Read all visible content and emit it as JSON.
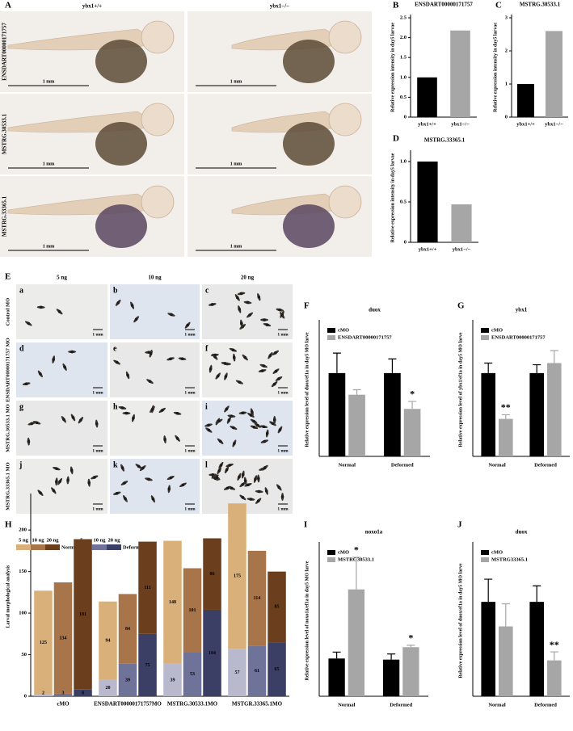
{
  "figures": [
    {
      "panel": "A",
      "columns": [
        "ybx1+/+",
        "ybx1−/−"
      ],
      "rows": [
        "ENSDART00000171757",
        "MSTRG.30533.1",
        "MSTRG.33365.1"
      ],
      "scale_bar": "1 mm"
    },
    {
      "panel": "E",
      "columns": [
        "5 ng",
        "10 ng",
        "20 ng"
      ],
      "rows": [
        "Control MO",
        "ENSDART00000171757 MO",
        "MSTRG.30533.1 MO",
        "MSTRG.33365.1 MO"
      ],
      "letters": [
        "a",
        "b",
        "c",
        "d",
        "e",
        "f",
        "g",
        "h",
        "i",
        "j",
        "k",
        "l"
      ],
      "scale_bar": "1 mm"
    }
  ],
  "chart_data": [
    {
      "type": "bar",
      "panel": "B",
      "title": "ENSDART00000171757",
      "ylabel": "Relative expression intensity in day5 larvae",
      "categories": [
        "ybx1+/+",
        "ybx1−/−"
      ],
      "values": [
        1,
        2.18
      ],
      "colors": [
        "#000000",
        "#a6a6a6"
      ],
      "ylim": [
        0,
        2.5
      ],
      "yticks": [
        0,
        0.5,
        {
          "value": 1,
          "label": "1.0"
        },
        1.5,
        {
          "value": 2,
          "label": "2.0"
        },
        2.5
      ]
    },
    {
      "type": "bar",
      "panel": "C",
      "title": "MSTRG.30533.1",
      "ylabel": "Relative expression intensity in day5 larvae",
      "categories": [
        "ybx1+/+",
        "ybx1−/−"
      ],
      "values": [
        1,
        2.6
      ],
      "colors": [
        "#000000",
        "#a6a6a6"
      ],
      "ylim": [
        0,
        3
      ],
      "yticks": [
        0,
        1,
        2,
        3
      ]
    },
    {
      "type": "bar",
      "panel": "D",
      "title": "MSTRG.33365.1",
      "ylabel": "Relative expression intensity in day5 larvae",
      "categories": [
        "ybx1+/+",
        "ybx1−/−"
      ],
      "values": [
        1,
        0.47
      ],
      "colors": [
        "#000000",
        "#a6a6a6"
      ],
      "ylim": [
        0,
        1.1
      ],
      "yticks": [
        0,
        0.5,
        {
          "value": 1,
          "label": "1.0"
        }
      ]
    },
    {
      "type": "grouped_bar",
      "panel": "F",
      "title": "duox",
      "ylabel": "Relative expression level of duox/ef1a in day5 MO larve",
      "categories": [
        "Normal",
        "Deformed"
      ],
      "series": [
        {
          "name": "cMO",
          "color": "#000000",
          "values": [
            1,
            1
          ],
          "errors": [
            0.24,
            0.17
          ],
          "significance": [
            null,
            null
          ]
        },
        {
          "name": "ENSDART00000171757",
          "color": "#a6a6a6",
          "values": [
            0.74,
            0.57
          ],
          "errors": [
            0.06,
            0.09
          ],
          "significance": [
            null,
            "*"
          ]
        }
      ],
      "ylim": [
        0,
        1.6
      ]
    },
    {
      "type": "grouped_bar",
      "panel": "G",
      "title": "ybx1",
      "ylabel": "Relative expression level of ybx1/ef1a in day5 MO larve",
      "categories": [
        "Normal",
        "Deformed"
      ],
      "series": [
        {
          "name": "cMO",
          "color": "#000000",
          "values": [
            1,
            1
          ],
          "errors": [
            0.12,
            0.1
          ],
          "significance": [
            null,
            null
          ]
        },
        {
          "name": "ENSDART00000171757",
          "color": "#a6a6a6",
          "values": [
            0.45,
            1.12
          ],
          "errors": [
            0.05,
            0.15
          ],
          "significance": [
            "**",
            null
          ]
        }
      ],
      "ylim": [
        0,
        1.6
      ]
    },
    {
      "type": "stacked_bar",
      "panel": "H",
      "ylabel": "Larval morphological analysis",
      "categories": [
        "cMO",
        "ENSDART00000171757MO",
        "MSTRG.30533.1MO",
        "MSTGR.33365.1MO"
      ],
      "doses": [
        "5 ng",
        "10 ng",
        "20 ng"
      ],
      "series": [
        {
          "name": "Normal",
          "colors": [
            "#d9b07a",
            "#a8744a",
            "#6b3f1e"
          ],
          "values": [
            [
              125,
              134,
              181
            ],
            [
              94,
              84,
              111
            ],
            [
              148,
              101,
              86
            ],
            [
              175,
              114,
              85
            ]
          ]
        },
        {
          "name": "Deformed",
          "colors": [
            "#b9b9cd",
            "#6f7299",
            "#3b3f66"
          ],
          "values": [
            [
              2,
              3,
              8
            ],
            [
              20,
              39,
              75
            ],
            [
              39,
              53,
              104
            ],
            [
              57,
              61,
              65
            ]
          ]
        }
      ],
      "ylim": [
        0,
        240
      ],
      "yticks": [
        0,
        50,
        100,
        150,
        200
      ]
    },
    {
      "type": "grouped_bar",
      "panel": "I",
      "title": "noxo1a",
      "ylabel": "Relative expression level of noxo1a/ef1a in day5 MO larve",
      "categories": [
        "Normal",
        "Deformed"
      ],
      "series": [
        {
          "name": "cMO",
          "color": "#000000",
          "values": [
            1,
            0.97
          ],
          "errors": [
            0.17,
            0.15
          ],
          "significance": [
            null,
            null
          ]
        },
        {
          "name": "MSTRG30533.1",
          "color": "#a6a6a6",
          "values": [
            2.83,
            1.3
          ],
          "errors": [
            0.85,
            0.05
          ],
          "significance": [
            "*",
            "*"
          ]
        }
      ],
      "ylim": [
        0,
        4
      ]
    },
    {
      "type": "grouped_bar",
      "panel": "J",
      "title": "duox",
      "ylabel": "Relative expression level of duox/ef1a in day5 MO larve",
      "categories": [
        "Normal",
        "Deformed"
      ],
      "series": [
        {
          "name": "cMO",
          "color": "#000000",
          "values": [
            1,
            1
          ],
          "errors": [
            0.24,
            0.17
          ],
          "significance": [
            null,
            null
          ]
        },
        {
          "name": "MSTRG33365.1",
          "color": "#a6a6a6",
          "values": [
            0.74,
            0.38
          ],
          "errors": [
            0.24,
            0.09
          ],
          "significance": [
            null,
            "**"
          ]
        }
      ],
      "ylim": [
        0,
        1.6
      ]
    }
  ]
}
